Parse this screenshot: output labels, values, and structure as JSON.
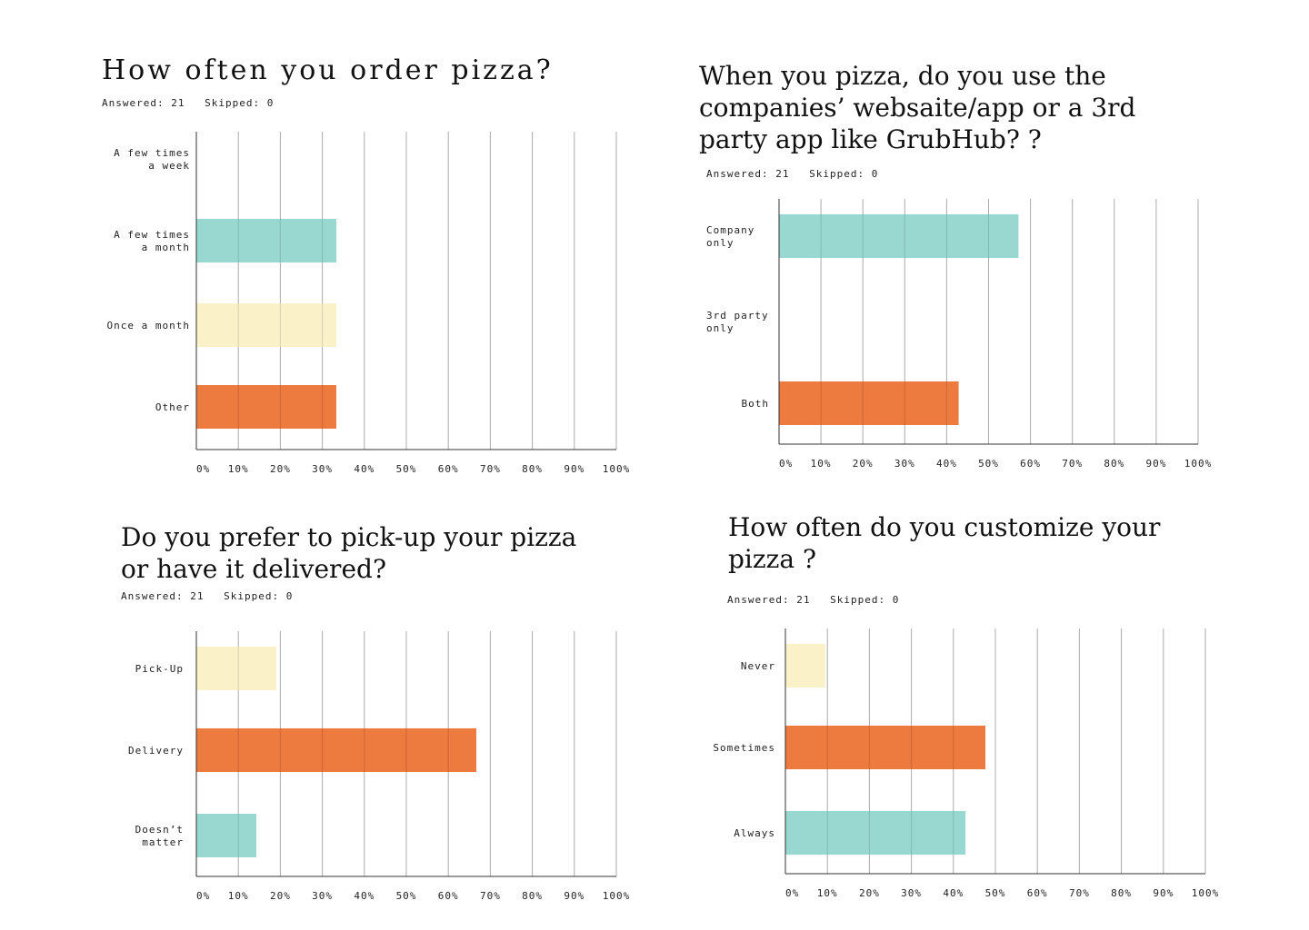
{
  "colors": {
    "teal": "#8fd5cc",
    "yellow": "#faf0c4",
    "orange": "#ec6f2f",
    "axis": "#333333",
    "grid": "#c4c4c4"
  },
  "chart_data": [
    {
      "type": "bar",
      "orientation": "horizontal",
      "title": "How often you order pizza?",
      "answered": "Answered: 21",
      "skipped": "Skipped: 0",
      "categories": [
        "A few times\n a week",
        "A few times\n a month",
        "Once a month",
        "Other"
      ],
      "values": [
        0,
        33.33,
        33.33,
        33.33
      ],
      "bar_colors": [
        "teal",
        "teal",
        "yellow",
        "orange"
      ],
      "xlim": [
        0,
        100
      ],
      "xticks": [
        "0%",
        "10%",
        "20%",
        "30%",
        "40%",
        "50%",
        "60%",
        "70%",
        "80%",
        "90%",
        "100%"
      ],
      "grid": true
    },
    {
      "type": "bar",
      "orientation": "horizontal",
      "title": "When you pizza, do you use the\ncompanies’ websaite/app or a 3rd\nparty app like GrubHub? ?",
      "answered": "Answered: 21",
      "skipped": "Skipped: 0",
      "categories": [
        "Company\nonly",
        "3rd party\nonly",
        "Both"
      ],
      "values": [
        57.14,
        0,
        42.86
      ],
      "bar_colors": [
        "teal",
        "yellow",
        "orange"
      ],
      "xlim": [
        0,
        100
      ],
      "xticks": [
        "0%",
        "10%",
        "20%",
        "30%",
        "40%",
        "50%",
        "60%",
        "70%",
        "80%",
        "90%",
        "100%"
      ],
      "grid": true
    },
    {
      "type": "bar",
      "orientation": "horizontal",
      "title": "Do you prefer to pick-up your pizza\nor have it delivered?",
      "answered": "Answered: 21",
      "skipped": "Skipped: 0",
      "categories": [
        "Pick-Up",
        "Delivery",
        "Doesn’t\nmatter"
      ],
      "values": [
        19.05,
        66.67,
        14.29
      ],
      "bar_colors": [
        "yellow",
        "orange",
        "teal"
      ],
      "xlim": [
        0,
        100
      ],
      "xticks": [
        "0%",
        "10%",
        "20%",
        "30%",
        "40%",
        "50%",
        "60%",
        "70%",
        "80%",
        "90%",
        "100%"
      ],
      "grid": true
    },
    {
      "type": "bar",
      "orientation": "horizontal",
      "title": "How often do you customize your\npizza ?",
      "answered": "Answered: 21",
      "skipped": "Skipped: 0",
      "categories": [
        "Never",
        "Sometimes",
        "Always"
      ],
      "values": [
        9.52,
        47.62,
        42.86
      ],
      "bar_colors": [
        "yellow",
        "orange",
        "teal"
      ],
      "xlim": [
        0,
        100
      ],
      "xticks": [
        "0%",
        "10%",
        "20%",
        "30%",
        "40%",
        "50%",
        "60%",
        "70%",
        "80%",
        "90%",
        "100%"
      ],
      "grid": true
    }
  ]
}
